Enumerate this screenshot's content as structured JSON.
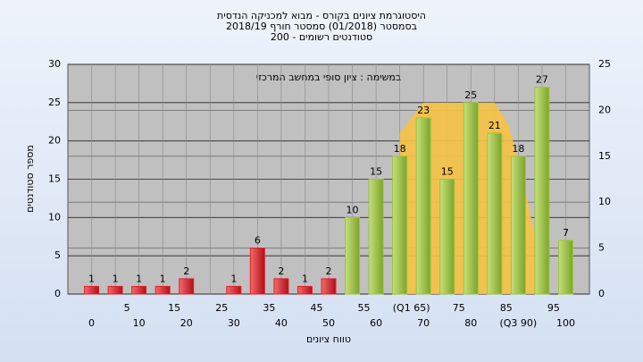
{
  "chart_data": {
    "type": "bar",
    "title": [
      "היסטוגרמת ציונים בקורס - מבוא למכניקה הנדסית",
      "בסמסטר (01/2018) סמסטר חורף 2018/19",
      "סטודנטים רשומים - 200"
    ],
    "annotation": "במשימה : ציון סופי במחשב המרכזי",
    "ylabel": "מספר סטודנטים",
    "xlabel": "טווח ציונים",
    "x": [
      0,
      5,
      10,
      15,
      20,
      25,
      30,
      35,
      40,
      45,
      50,
      55,
      60,
      65,
      70,
      75,
      80,
      85,
      90,
      95,
      100
    ],
    "values": [
      1,
      1,
      1,
      1,
      2,
      null,
      1,
      6,
      2,
      1,
      2,
      10,
      15,
      18,
      23,
      15,
      25,
      21,
      18,
      27,
      7
    ],
    "colors": [
      "#e0202a",
      "#e0202a",
      "#e0202a",
      "#e0202a",
      "#e0202a",
      "#e0202a",
      "#e0202a",
      "#e0202a",
      "#e0202a",
      "#e0202a",
      "#e0202a",
      "#9cc43e",
      "#9cc43e",
      "#9cc43e",
      "#9cc43e",
      "#9cc43e",
      "#9cc43e",
      "#9cc43e",
      "#9cc43e",
      "#9cc43e",
      "#9cc43e"
    ],
    "area": {
      "color": "#f6c244",
      "x": [
        65,
        70,
        75,
        80,
        85,
        88,
        91,
        93.4
      ],
      "values": [
        21,
        25,
        25,
        25,
        25,
        22,
        15,
        7.8
      ]
    },
    "xlim": [
      -5,
      105
    ],
    "xticks": [
      0,
      5,
      10,
      15,
      20,
      25,
      30,
      35,
      40,
      45,
      50,
      55,
      60,
      {
        "value": 65,
        "label": "(Q1 65)"
      },
      70,
      75,
      80,
      85,
      {
        "value": 90,
        "label": "(Q3 90)"
      },
      95,
      100
    ],
    "ylim": [
      0,
      30
    ],
    "yticks": [
      0,
      5,
      10,
      15,
      20,
      25,
      30
    ],
    "y2lim": [
      0,
      25
    ],
    "y2ticks": [
      0,
      5,
      10,
      15,
      20,
      25
    ],
    "grid": true
  }
}
